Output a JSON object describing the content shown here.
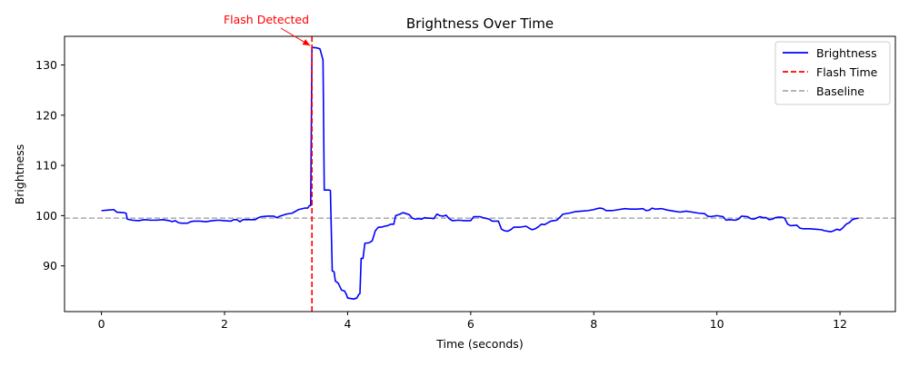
{
  "chart_data": {
    "type": "line",
    "title": "Brightness Over Time",
    "xlabel": "Time (seconds)",
    "ylabel": "Brightness",
    "xlim": [
      -0.6,
      12.9
    ],
    "ylim": [
      80.9,
      135.7
    ],
    "xticks": [
      0,
      2,
      4,
      6,
      8,
      10,
      12
    ],
    "yticks": [
      90,
      100,
      110,
      120,
      130
    ],
    "grid": false,
    "legend_position": "top-right",
    "series": [
      {
        "name": "Brightness",
        "style": "solid",
        "color": "#0000ff",
        "points": [
          [
            0.0,
            101.0
          ],
          [
            0.1,
            101.1
          ],
          [
            0.2,
            101.2
          ],
          [
            0.25,
            100.7
          ],
          [
            0.35,
            100.6
          ],
          [
            0.4,
            100.5
          ],
          [
            0.42,
            99.3
          ],
          [
            0.5,
            99.1
          ],
          [
            0.6,
            99.0
          ],
          [
            0.7,
            99.2
          ],
          [
            0.8,
            99.1
          ],
          [
            0.9,
            99.1
          ],
          [
            1.0,
            99.2
          ],
          [
            1.1,
            99.0
          ],
          [
            1.15,
            98.8
          ],
          [
            1.2,
            99.0
          ],
          [
            1.25,
            98.6
          ],
          [
            1.3,
            98.5
          ],
          [
            1.4,
            98.5
          ],
          [
            1.45,
            98.8
          ],
          [
            1.5,
            98.9
          ],
          [
            1.6,
            98.9
          ],
          [
            1.7,
            98.8
          ],
          [
            1.8,
            99.0
          ],
          [
            1.9,
            99.1
          ],
          [
            2.0,
            99.0
          ],
          [
            2.1,
            98.9
          ],
          [
            2.15,
            99.2
          ],
          [
            2.2,
            99.2
          ],
          [
            2.25,
            98.8
          ],
          [
            2.3,
            99.2
          ],
          [
            2.4,
            99.2
          ],
          [
            2.5,
            99.2
          ],
          [
            2.55,
            99.6
          ],
          [
            2.6,
            99.8
          ],
          [
            2.7,
            99.9
          ],
          [
            2.8,
            99.9
          ],
          [
            2.85,
            99.6
          ],
          [
            2.9,
            99.9
          ],
          [
            3.0,
            100.3
          ],
          [
            3.1,
            100.5
          ],
          [
            3.2,
            101.2
          ],
          [
            3.3,
            101.5
          ],
          [
            3.35,
            101.5
          ],
          [
            3.38,
            102.0
          ],
          [
            3.4,
            102.0
          ],
          [
            3.42,
            133.5
          ],
          [
            3.5,
            133.4
          ],
          [
            3.55,
            133.2
          ],
          [
            3.6,
            131.0
          ],
          [
            3.62,
            105.1
          ],
          [
            3.7,
            105.1
          ],
          [
            3.72,
            105.0
          ],
          [
            3.75,
            89.0
          ],
          [
            3.78,
            88.8
          ],
          [
            3.8,
            87.0
          ],
          [
            3.85,
            86.5
          ],
          [
            3.9,
            85.2
          ],
          [
            3.95,
            85.0
          ],
          [
            3.98,
            84.3
          ],
          [
            4.0,
            83.6
          ],
          [
            4.1,
            83.4
          ],
          [
            4.15,
            83.6
          ],
          [
            4.18,
            84.3
          ],
          [
            4.2,
            84.5
          ],
          [
            4.22,
            91.5
          ],
          [
            4.25,
            91.5
          ],
          [
            4.28,
            94.5
          ],
          [
            4.35,
            94.6
          ],
          [
            4.4,
            95.0
          ],
          [
            4.45,
            97.0
          ],
          [
            4.5,
            97.7
          ],
          [
            4.55,
            97.7
          ],
          [
            4.6,
            97.9
          ],
          [
            4.65,
            98.0
          ],
          [
            4.7,
            98.3
          ],
          [
            4.75,
            98.3
          ],
          [
            4.78,
            100.0
          ],
          [
            4.85,
            100.3
          ],
          [
            4.9,
            100.6
          ],
          [
            4.95,
            100.4
          ],
          [
            5.0,
            100.2
          ],
          [
            5.05,
            99.5
          ],
          [
            5.1,
            99.3
          ],
          [
            5.15,
            99.4
          ],
          [
            5.2,
            99.3
          ],
          [
            5.25,
            99.6
          ],
          [
            5.3,
            99.5
          ],
          [
            5.35,
            99.5
          ],
          [
            5.4,
            99.4
          ],
          [
            5.45,
            100.3
          ],
          [
            5.5,
            100.0
          ],
          [
            5.55,
            99.9
          ],
          [
            5.6,
            100.1
          ],
          [
            5.65,
            99.4
          ],
          [
            5.7,
            99.0
          ],
          [
            5.8,
            99.1
          ],
          [
            5.9,
            99.0
          ],
          [
            6.0,
            99.0
          ],
          [
            6.05,
            99.8
          ],
          [
            6.15,
            99.8
          ],
          [
            6.2,
            99.6
          ],
          [
            6.3,
            99.3
          ],
          [
            6.35,
            98.9
          ],
          [
            6.45,
            98.9
          ],
          [
            6.5,
            97.3
          ],
          [
            6.55,
            97.0
          ],
          [
            6.6,
            96.9
          ],
          [
            6.65,
            97.2
          ],
          [
            6.7,
            97.7
          ],
          [
            6.8,
            97.7
          ],
          [
            6.9,
            97.9
          ],
          [
            6.95,
            97.5
          ],
          [
            7.0,
            97.2
          ],
          [
            7.05,
            97.4
          ],
          [
            7.1,
            97.8
          ],
          [
            7.15,
            98.3
          ],
          [
            7.2,
            98.2
          ],
          [
            7.3,
            98.9
          ],
          [
            7.35,
            99.0
          ],
          [
            7.4,
            99.1
          ],
          [
            7.45,
            99.7
          ],
          [
            7.5,
            100.3
          ],
          [
            7.6,
            100.5
          ],
          [
            7.7,
            100.8
          ],
          [
            7.8,
            100.9
          ],
          [
            7.9,
            101.0
          ],
          [
            8.0,
            101.2
          ],
          [
            8.05,
            101.4
          ],
          [
            8.1,
            101.5
          ],
          [
            8.15,
            101.4
          ],
          [
            8.2,
            101.0
          ],
          [
            8.3,
            101.0
          ],
          [
            8.4,
            101.2
          ],
          [
            8.5,
            101.4
          ],
          [
            8.6,
            101.3
          ],
          [
            8.7,
            101.3
          ],
          [
            8.8,
            101.4
          ],
          [
            8.85,
            101.0
          ],
          [
            8.9,
            101.1
          ],
          [
            8.95,
            101.5
          ],
          [
            9.0,
            101.3
          ],
          [
            9.1,
            101.4
          ],
          [
            9.2,
            101.1
          ],
          [
            9.3,
            100.9
          ],
          [
            9.4,
            100.7
          ],
          [
            9.5,
            100.9
          ],
          [
            9.6,
            100.7
          ],
          [
            9.7,
            100.5
          ],
          [
            9.8,
            100.4
          ],
          [
            9.85,
            99.9
          ],
          [
            9.9,
            99.8
          ],
          [
            10.0,
            100.0
          ],
          [
            10.1,
            99.8
          ],
          [
            10.15,
            99.1
          ],
          [
            10.2,
            99.2
          ],
          [
            10.3,
            99.1
          ],
          [
            10.35,
            99.3
          ],
          [
            10.4,
            99.9
          ],
          [
            10.5,
            99.8
          ],
          [
            10.55,
            99.4
          ],
          [
            10.6,
            99.3
          ],
          [
            10.7,
            99.8
          ],
          [
            10.75,
            99.6
          ],
          [
            10.8,
            99.6
          ],
          [
            10.85,
            99.2
          ],
          [
            10.9,
            99.3
          ],
          [
            10.95,
            99.6
          ],
          [
            11.0,
            99.7
          ],
          [
            11.05,
            99.7
          ],
          [
            11.1,
            99.5
          ],
          [
            11.15,
            98.3
          ],
          [
            11.2,
            98.0
          ],
          [
            11.3,
            98.1
          ],
          [
            11.35,
            97.5
          ],
          [
            11.4,
            97.4
          ],
          [
            11.5,
            97.4
          ],
          [
            11.6,
            97.3
          ],
          [
            11.7,
            97.2
          ],
          [
            11.75,
            97.0
          ],
          [
            11.8,
            96.9
          ],
          [
            11.85,
            96.8
          ],
          [
            11.9,
            97.0
          ],
          [
            11.95,
            97.3
          ],
          [
            12.0,
            97.1
          ],
          [
            12.05,
            97.6
          ],
          [
            12.1,
            98.3
          ],
          [
            12.15,
            98.6
          ],
          [
            12.2,
            99.2
          ],
          [
            12.25,
            99.4
          ],
          [
            12.3,
            99.5
          ]
        ]
      },
      {
        "name": "Flash Time",
        "style": "dashed",
        "color": "#ff0000",
        "vline_x": 3.42
      },
      {
        "name": "Baseline",
        "style": "dashed",
        "color": "#aaaaaa",
        "hline_y": 99.5
      }
    ],
    "annotation": {
      "text": "Flash Detected",
      "color": "#ff0000",
      "x": 3.42,
      "y": 133.5
    }
  }
}
